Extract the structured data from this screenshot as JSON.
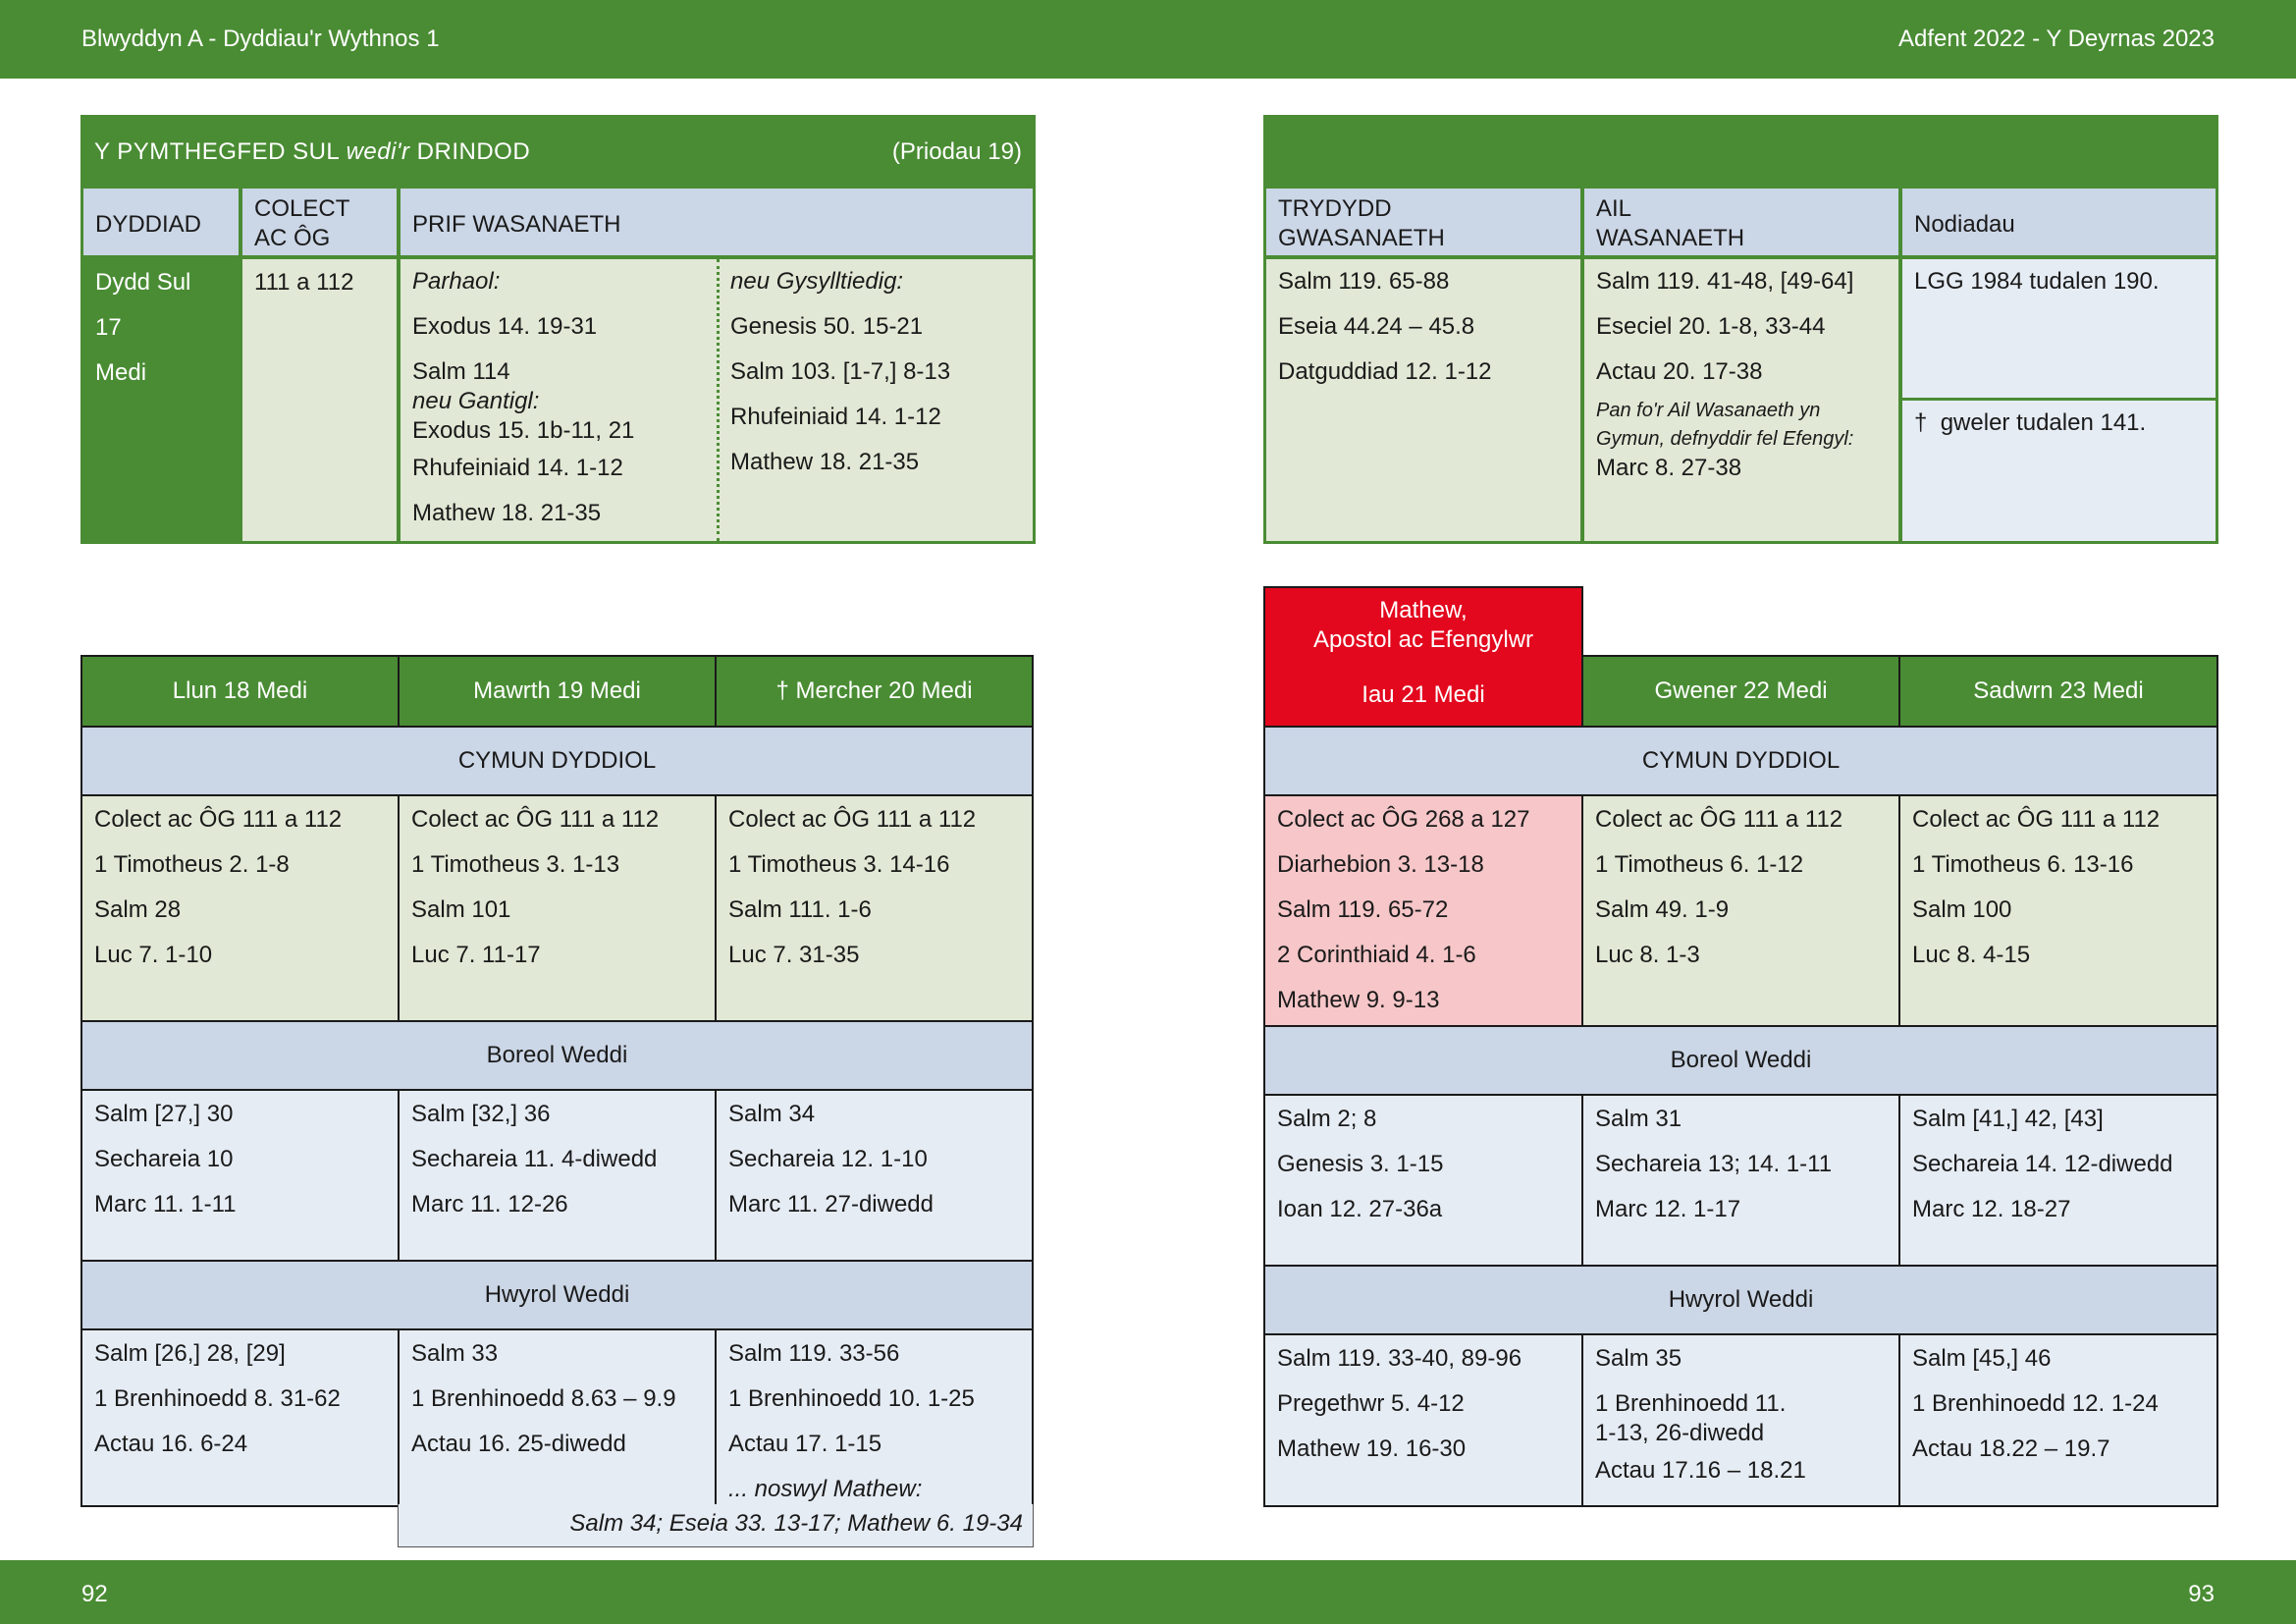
{
  "header": {
    "left": "Blwyddyn  A - Dyddiau'r Wythnos 1",
    "right": "Adfent  2022 - Y Deyrnas 2023"
  },
  "footer": {
    "page_left": "92",
    "page_right": "93"
  },
  "sunday": {
    "title_before": "Y PYMTHEGFED SUL ",
    "title_italic": "wedi'r",
    "title_after": " DRINDOD",
    "title_note": "(Priodau 19)",
    "col_date": "DYDDIAD",
    "col_collect_1": "COLECT",
    "col_collect_2": "AC ÔG",
    "col_main": "PRIF WASANAETH",
    "date_lines": [
      "Dydd Sul",
      "17",
      "Medi"
    ],
    "collect": "111 a 112",
    "continuous_label": "Parhaol:",
    "continuous": [
      "Exodus 14. 19-31",
      "Salm 114",
      "neu Gantigl:",
      "Exodus 15. 1b-11, 21",
      "Rhufeiniaid 14. 1-12",
      "Mathew 18. 21-35"
    ],
    "related_label": "neu Gysylltiedig:",
    "related": [
      "Genesis 50. 15-21",
      "Salm 103. [1-7,] 8-13",
      "Rhufeiniaid 14. 1-12",
      "Mathew 18. 21-35"
    ],
    "col_third_1": "TRYDYDD",
    "col_third_2": "GWASANAETH",
    "col_second_1": "AIL",
    "col_second_2": "WASANAETH",
    "col_notes": "Nodiadau",
    "third": [
      "Salm 119. 65-88",
      "Eseia 44.24 – 45.8",
      "Datguddiad 12. 1-12"
    ],
    "second": [
      "Salm 119. 41-48, [49-64]",
      "Eseciel 20. 1-8, 33-44",
      "Actau 20. 17-38"
    ],
    "second_note_1": "Pan fo'r Ail Wasanaeth yn",
    "second_note_2": "Gymun, defnyddir fel Efengyl:",
    "second_note_reading": "Marc 8. 27-38",
    "note_1": "LGG 1984 tudalen 190.",
    "note_2_dagger": "†",
    "note_2": "gweler tudalen 141."
  },
  "week_left": {
    "days": [
      "Llun 18 Medi",
      "Mawrth 19 Medi",
      "† Mercher 20 Medi"
    ],
    "eucharist_label": "CYMUN DYDDIOL",
    "eucharist": [
      [
        "Colect ac ÔG 111 a 112",
        "1 Timotheus 2. 1-8",
        "Salm 28",
        "Luc 7. 1-10"
      ],
      [
        "Colect ac ÔG 111 a 112",
        "1 Timotheus 3. 1-13",
        "Salm 101",
        "Luc 7. 11-17"
      ],
      [
        "Colect ac ÔG 111 a 112",
        "1 Timotheus 3. 14-16",
        "Salm 111. 1-6",
        "Luc 7. 31-35"
      ]
    ],
    "morning_label": "Boreol Weddi",
    "morning": [
      [
        "Salm [27,] 30",
        "Sechareia 10",
        "Marc 11. 1-11"
      ],
      [
        "Salm [32,] 36",
        "Sechareia 11. 4-diwedd",
        "Marc 11. 12-26"
      ],
      [
        "Salm 34",
        "Sechareia 12. 1-10",
        "Marc 11. 27-diwedd"
      ]
    ],
    "evening_label": "Hwyrol Weddi",
    "evening": [
      [
        "Salm [26,] 28, [29]",
        "1 Brenhinoedd 8. 31-62",
        "Actau 16. 6-24"
      ],
      [
        "Salm 33",
        "1 Brenhinoedd 8.63 – 9.9",
        "Actau 16. 25-diwedd"
      ],
      [
        "Salm 119. 33-56",
        "1 Brenhinoedd 10. 1-25",
        "Actau 17. 1-15"
      ]
    ],
    "eve_label": "... noswyl Mathew:",
    "eve_readings": "Salm 34;  Eseia 33. 13-17;  Mathew 6. 19-34"
  },
  "week_right": {
    "feast_line_1": "Mathew,",
    "feast_line_2": "Apostol ac Efengylwr",
    "days": [
      "Iau 21 Medi",
      "Gwener 22 Medi",
      "Sadwrn 23 Medi"
    ],
    "eucharist_label": "CYMUN DYDDIOL",
    "eucharist": [
      [
        "Colect ac ÔG 268 a 127",
        "Diarhebion 3. 13-18",
        "Salm 119. 65-72",
        "2 Corinthiaid 4. 1-6",
        "Mathew 9. 9-13"
      ],
      [
        "Colect ac ÔG 111 a 112",
        "1 Timotheus 6. 1-12",
        "Salm 49. 1-9",
        "Luc 8. 1-3"
      ],
      [
        "Colect ac ÔG 111 a 112",
        "1 Timotheus 6. 13-16",
        "Salm 100",
        "Luc 8. 4-15"
      ]
    ],
    "morning_label": "Boreol Weddi",
    "morning": [
      [
        "Salm 2; 8",
        "Genesis 3. 1-15",
        "Ioan 12. 27-36a"
      ],
      [
        "Salm 31",
        "Sechareia 13; 14. 1-11",
        "Marc 12. 1-17"
      ],
      [
        "Salm [41,] 42, [43]",
        "Sechareia 14. 12-diwedd",
        "Marc 12. 18-27"
      ]
    ],
    "evening_label": "Hwyrol Weddi",
    "evening": [
      [
        "Salm 119. 33-40, 89-96",
        "Pregethwr 5. 4-12",
        "Mathew 19. 16-30"
      ],
      [
        "Salm 35",
        "1 Brenhinoedd 11.",
        "1-13, 26-diwedd",
        "Actau 17.16 – 18.21"
      ],
      [
        "Salm [45,] 46",
        "1 Brenhinoedd 12. 1-24",
        "Actau 18.22 – 19.7"
      ]
    ]
  }
}
